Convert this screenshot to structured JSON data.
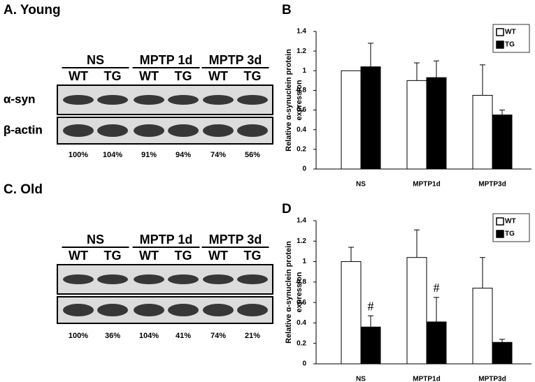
{
  "blots": [
    {
      "title": "A. Young",
      "groups": [
        "NS",
        "MPTP 1d",
        "MPTP 3d"
      ],
      "lanes": [
        "WT",
        "TG",
        "WT",
        "TG",
        "WT",
        "TG"
      ],
      "rows": [
        "α-syn",
        "β-actin"
      ],
      "percents": [
        "100%",
        "104%",
        "91%",
        "94%",
        "74%",
        "56%"
      ]
    },
    {
      "title": "C. Old",
      "groups": [
        "NS",
        "MPTP 1d",
        "MPTP 3d"
      ],
      "lanes": [
        "WT",
        "TG",
        "WT",
        "TG",
        "WT",
        "TG"
      ],
      "rows": [
        "α-syn",
        "β-actin"
      ],
      "percents": [
        "100%",
        "36%",
        "104%",
        "41%",
        "74%",
        "21%"
      ]
    }
  ],
  "chart_data": [
    {
      "type": "bar",
      "panel": "B",
      "ylabel": [
        "Relative α-synuclein protein",
        "expression"
      ],
      "categories": [
        "NS",
        "MPTP1d",
        "MPTP3d"
      ],
      "series": [
        {
          "name": "WT",
          "color": "#ffffff",
          "values": [
            1.0,
            0.9,
            0.75
          ],
          "errors": [
            0,
            0.18,
            0.31
          ]
        },
        {
          "name": "TG",
          "color": "#000000",
          "values": [
            1.04,
            0.93,
            0.55
          ],
          "errors": [
            0.24,
            0.17,
            0.05
          ]
        }
      ],
      "ylim": [
        0,
        1.4
      ],
      "yticks": [
        0,
        0.2,
        0.4,
        0.6,
        0.8,
        1,
        1.2,
        1.4
      ],
      "legend": "upper right"
    },
    {
      "type": "bar",
      "panel": "D",
      "ylabel": [
        "Relative α-synuclein protein",
        "expression"
      ],
      "categories": [
        "NS",
        "MPTP1d",
        "MPTP3d"
      ],
      "series": [
        {
          "name": "WT",
          "color": "#ffffff",
          "values": [
            1.0,
            1.04,
            0.74
          ],
          "errors": [
            0.14,
            0.27,
            0.3
          ]
        },
        {
          "name": "TG",
          "color": "#000000",
          "values": [
            0.36,
            0.41,
            0.21
          ],
          "errors": [
            0.11,
            0.24,
            0.03
          ],
          "annotations": [
            "#",
            "#",
            null
          ]
        }
      ],
      "ylim": [
        0,
        1.4
      ],
      "yticks": [
        0,
        0.2,
        0.4,
        0.6,
        0.8,
        1,
        1.2,
        1.4
      ],
      "legend": "upper right"
    }
  ]
}
